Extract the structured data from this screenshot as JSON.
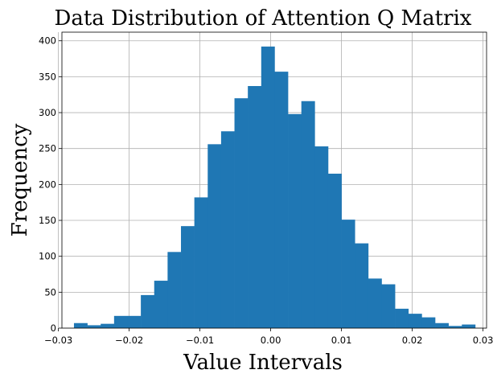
{
  "chart_data": {
    "type": "bar",
    "title": "Data Distribution of Attention Q Matrix",
    "xlabel": "Value Intervals",
    "ylabel": "Frequency",
    "xlim": [
      -0.0295,
      0.0305
    ],
    "ylim": [
      0,
      412
    ],
    "grid": true,
    "bar_color": "#1f77b4",
    "xticks": [
      -0.03,
      -0.02,
      -0.01,
      0.0,
      0.01,
      0.02,
      0.03
    ],
    "xtick_labels": [
      "−0.03",
      "−0.02",
      "−0.01",
      "0.00",
      "0.01",
      "0.02",
      "0.03"
    ],
    "yticks": [
      0,
      50,
      100,
      150,
      200,
      250,
      300,
      350,
      400
    ],
    "ytick_labels": [
      "0",
      "50",
      "100",
      "150",
      "200",
      "250",
      "300",
      "350",
      "400"
    ],
    "bin_edges": [
      -0.0278,
      -0.02591,
      -0.02402,
      -0.02213,
      -0.02024,
      -0.01835,
      -0.01646,
      -0.01457,
      -0.01268,
      -0.01079,
      -0.0089,
      -0.00701,
      -0.00512,
      -0.00323,
      -0.00134,
      0.00055,
      0.00244,
      0.00433,
      0.00622,
      0.00811,
      0.01,
      0.01189,
      0.01378,
      0.01567,
      0.01756,
      0.01945,
      0.02134,
      0.02323,
      0.02512,
      0.02701,
      0.0289
    ],
    "values": [
      7,
      4,
      6,
      17,
      17,
      46,
      66,
      106,
      142,
      182,
      256,
      274,
      320,
      337,
      392,
      357,
      298,
      316,
      253,
      215,
      151,
      118,
      69,
      61,
      27,
      20,
      15,
      7,
      3,
      5
    ]
  }
}
